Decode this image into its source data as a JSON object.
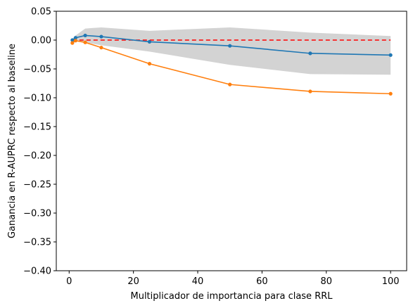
{
  "chart_data": {
    "type": "line",
    "title": "",
    "xlabel": "Multiplicador de importancia para clase RRL",
    "ylabel": "Ganancia en R-AUPRC respecto al baseline",
    "xlim": [
      -4,
      105
    ],
    "ylim": [
      -0.4,
      0.05
    ],
    "xticks": [
      0,
      20,
      40,
      60,
      80,
      100
    ],
    "xtick_labels": [
      "0",
      "20",
      "40",
      "60",
      "80",
      "100"
    ],
    "yticks": [
      0.05,
      0.0,
      -0.05,
      -0.1,
      -0.15,
      -0.2,
      -0.25,
      -0.3,
      -0.35,
      -0.4
    ],
    "ytick_labels": [
      "0.05",
      "0.00",
      "−0.05",
      "−0.10",
      "−0.15",
      "−0.20",
      "−0.25",
      "−0.30",
      "−0.35",
      "−0.40"
    ],
    "grid": false,
    "x": [
      1,
      2,
      5,
      10,
      25,
      50,
      75,
      100
    ],
    "series": [
      {
        "values": [
          0.0,
          0.004,
          0.008,
          0.006,
          -0.003,
          -0.01,
          -0.023,
          -0.026
        ],
        "color": "#1f77b4",
        "marker": "dot"
      },
      {
        "values": [
          -0.005,
          -0.001,
          -0.004,
          -0.013,
          -0.041,
          -0.077,
          -0.089,
          -0.093
        ],
        "color": "#ff7f0e",
        "marker": "dot"
      }
    ],
    "band": {
      "upper": [
        0.002,
        0.008,
        0.02,
        0.022,
        0.016,
        0.022,
        0.013,
        0.007
      ],
      "lower": [
        -0.002,
        -0.002,
        -0.004,
        -0.009,
        -0.02,
        -0.043,
        -0.059,
        -0.06
      ],
      "color": "#d3d3d3"
    },
    "reference_line": {
      "y": 0.0,
      "x_range": [
        1,
        100
      ],
      "color": "#ff0000",
      "style": "dashed"
    }
  }
}
